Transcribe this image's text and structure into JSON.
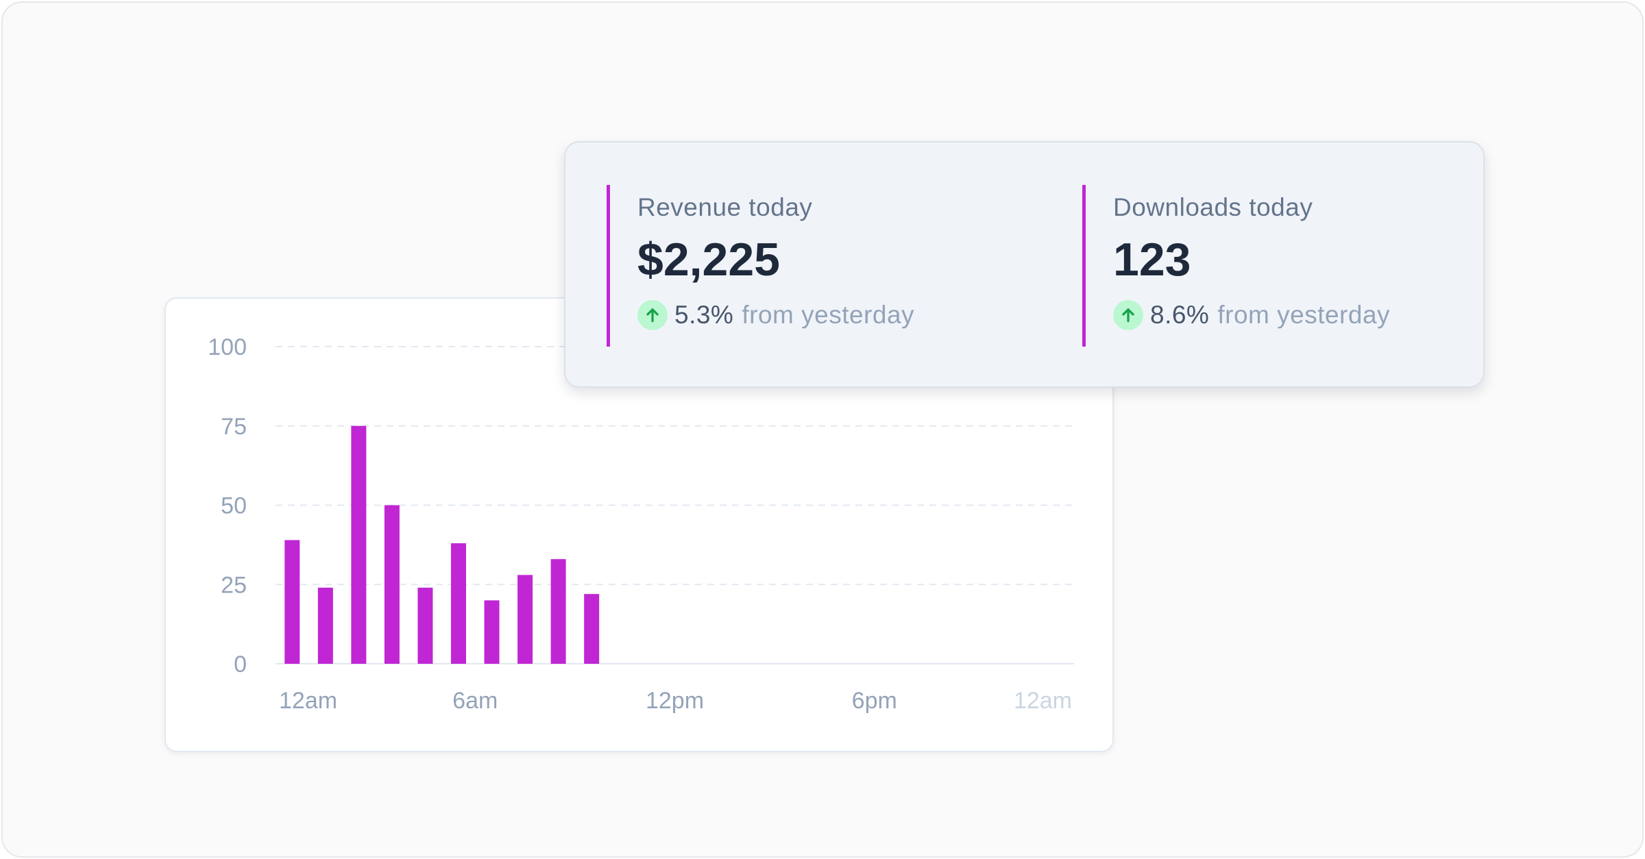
{
  "colors": {
    "accent": "#c026d3",
    "positive_badge": "#bbf7d0",
    "positive_arrow": "#16a34a"
  },
  "stats": [
    {
      "label": "Revenue today",
      "value": "$2,225",
      "change": "5.3%",
      "change_suffix": "from yesterday",
      "trend_icon": "arrow-up-icon"
    },
    {
      "label": "Downloads today",
      "value": "123",
      "change": "8.6%",
      "change_suffix": "from yesterday",
      "trend_icon": "arrow-up-icon"
    }
  ],
  "chart_data": {
    "type": "bar",
    "title": "",
    "xlabel": "",
    "ylabel": "",
    "x_ticks": [
      "12am",
      "6am",
      "12pm",
      "6pm",
      "12am"
    ],
    "y_ticks": [
      "0",
      "25",
      "50",
      "75",
      "100"
    ],
    "ylim": [
      0,
      100
    ],
    "xlim_hours": [
      0,
      24
    ],
    "grid": true,
    "color": "#c026d3",
    "hours": [
      0,
      1,
      2,
      3,
      4,
      5,
      6,
      7,
      8,
      9
    ],
    "values": [
      39,
      24,
      75,
      50,
      24,
      38,
      20,
      28,
      33,
      22
    ]
  }
}
